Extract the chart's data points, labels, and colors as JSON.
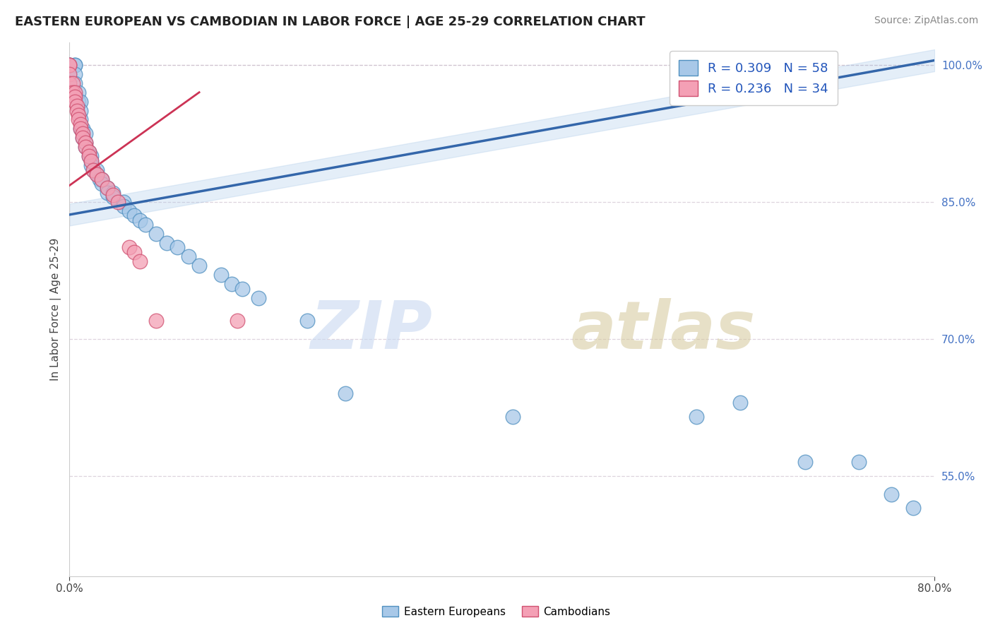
{
  "title": "EASTERN EUROPEAN VS CAMBODIAN IN LABOR FORCE | AGE 25-29 CORRELATION CHART",
  "source": "Source: ZipAtlas.com",
  "ylabel": "In Labor Force | Age 25-29",
  "xmin": 0.0,
  "xmax": 0.8,
  "ymin": 0.44,
  "ymax": 1.025,
  "y_ticks": [
    0.55,
    0.7,
    0.85,
    1.0
  ],
  "y_tick_labels": [
    "55.0%",
    "70.0%",
    "85.0%",
    "100.0%"
  ],
  "blue_R": 0.309,
  "blue_N": 58,
  "pink_R": 0.236,
  "pink_N": 34,
  "blue_color": "#a8c8e8",
  "pink_color": "#f4a0b5",
  "blue_edge_color": "#5090c0",
  "pink_edge_color": "#d05070",
  "blue_line_color": "#3366aa",
  "pink_line_color": "#cc3355",
  "grid_color": "#c8b8c8",
  "grid_alpha": 0.6,
  "blue_trend_x0": 0.0,
  "blue_trend_y0": 0.836,
  "blue_trend_x1": 0.8,
  "blue_trend_y1": 1.005,
  "pink_trend_x0": 0.0,
  "pink_trend_y0": 0.868,
  "pink_trend_x1": 0.12,
  "pink_trend_y1": 0.97,
  "blue_scatter_x": [
    0.0,
    0.0,
    0.0,
    0.0,
    0.005,
    0.005,
    0.005,
    0.005,
    0.008,
    0.008,
    0.01,
    0.01,
    0.01,
    0.01,
    0.012,
    0.012,
    0.015,
    0.015,
    0.015,
    0.018,
    0.018,
    0.02,
    0.02,
    0.02,
    0.022,
    0.025,
    0.025,
    0.028,
    0.03,
    0.03,
    0.035,
    0.035,
    0.04,
    0.04,
    0.05,
    0.05,
    0.055,
    0.06,
    0.065,
    0.07,
    0.08,
    0.09,
    0.1,
    0.11,
    0.12,
    0.14,
    0.15,
    0.16,
    0.175,
    0.22,
    0.255,
    0.41,
    0.58,
    0.62,
    0.68,
    0.73,
    0.76,
    0.78
  ],
  "blue_scatter_y": [
    1.0,
    1.0,
    1.0,
    0.99,
    1.0,
    1.0,
    0.99,
    0.98,
    0.97,
    0.96,
    0.96,
    0.95,
    0.94,
    0.93,
    0.93,
    0.92,
    0.925,
    0.915,
    0.91,
    0.905,
    0.9,
    0.9,
    0.895,
    0.89,
    0.885,
    0.885,
    0.88,
    0.875,
    0.875,
    0.87,
    0.865,
    0.86,
    0.86,
    0.855,
    0.85,
    0.845,
    0.84,
    0.835,
    0.83,
    0.825,
    0.815,
    0.805,
    0.8,
    0.79,
    0.78,
    0.77,
    0.76,
    0.755,
    0.745,
    0.72,
    0.64,
    0.615,
    0.615,
    0.63,
    0.565,
    0.565,
    0.53,
    0.515
  ],
  "pink_scatter_x": [
    0.0,
    0.0,
    0.0,
    0.0,
    0.0,
    0.003,
    0.003,
    0.005,
    0.005,
    0.005,
    0.007,
    0.007,
    0.008,
    0.008,
    0.01,
    0.01,
    0.012,
    0.012,
    0.015,
    0.015,
    0.018,
    0.018,
    0.02,
    0.022,
    0.025,
    0.03,
    0.035,
    0.04,
    0.045,
    0.055,
    0.06,
    0.065,
    0.08,
    0.155
  ],
  "pink_scatter_y": [
    1.0,
    1.0,
    0.99,
    0.98,
    0.97,
    0.98,
    0.97,
    0.97,
    0.965,
    0.96,
    0.955,
    0.95,
    0.945,
    0.94,
    0.935,
    0.93,
    0.925,
    0.92,
    0.915,
    0.91,
    0.905,
    0.9,
    0.895,
    0.885,
    0.88,
    0.875,
    0.865,
    0.858,
    0.85,
    0.8,
    0.795,
    0.785,
    0.72,
    0.72
  ]
}
